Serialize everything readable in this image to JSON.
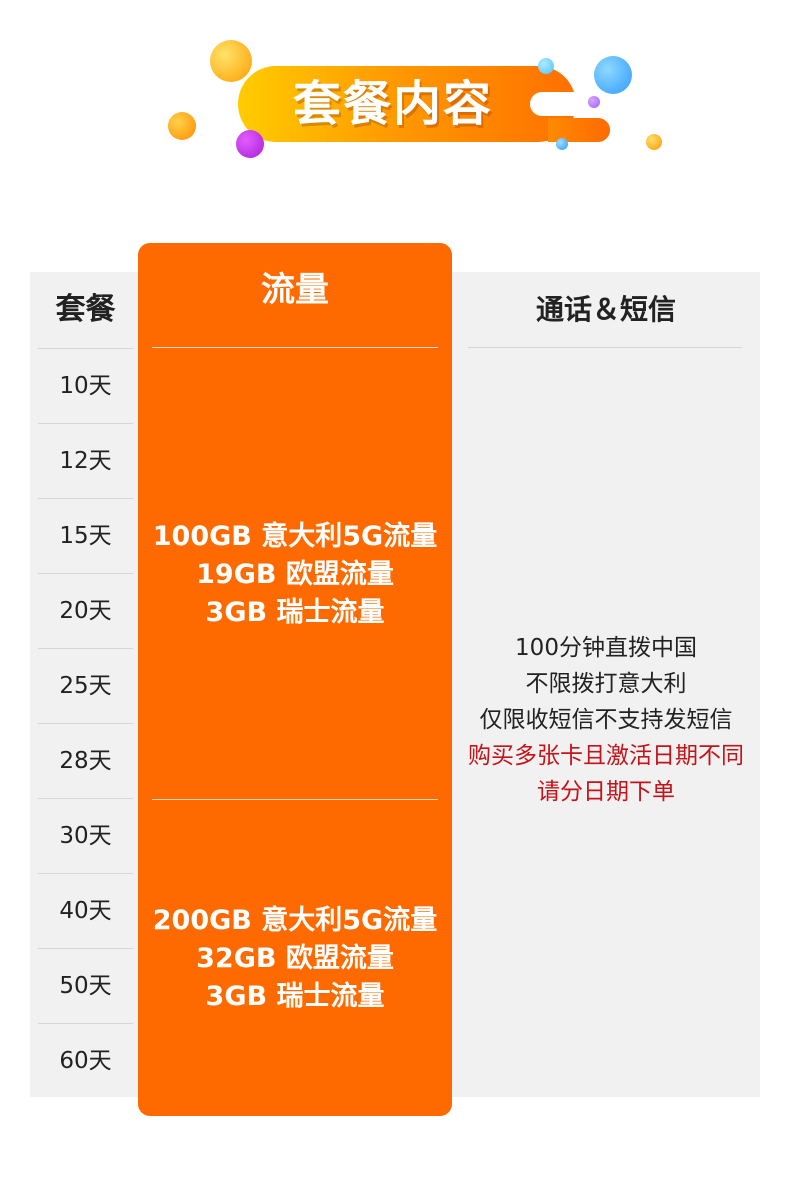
{
  "header": {
    "title": "套餐内容",
    "colors": {
      "bar_start": "#ffcc00",
      "bar_end": "#ff7000"
    }
  },
  "table": {
    "plan_header": "套餐",
    "data_header": "流量",
    "call_header": "通话＆短信",
    "plans": [
      "10天",
      "12天",
      "15天",
      "20天",
      "25天",
      "28天",
      "30天",
      "40天",
      "50天",
      "60天"
    ],
    "data_groups": [
      {
        "lines": [
          "100GB 意大利5G流量",
          "19GB 欧盟流量",
          "3GB 瑞士流量"
        ]
      },
      {
        "lines": [
          "200GB 意大利5G流量",
          "32GB 欧盟流量",
          "3GB 瑞士流量"
        ]
      }
    ],
    "call_lines": [
      "100分钟直拨中国",
      "不限拨打意大利",
      "仅限收短信不支持发短信"
    ],
    "call_notes": [
      "购买多张卡且激活日期不同",
      "请分日期下单"
    ],
    "colors": {
      "data_column": "#ff6a00",
      "note_text": "#c4141a",
      "table_background": "#f1f1f1"
    }
  }
}
